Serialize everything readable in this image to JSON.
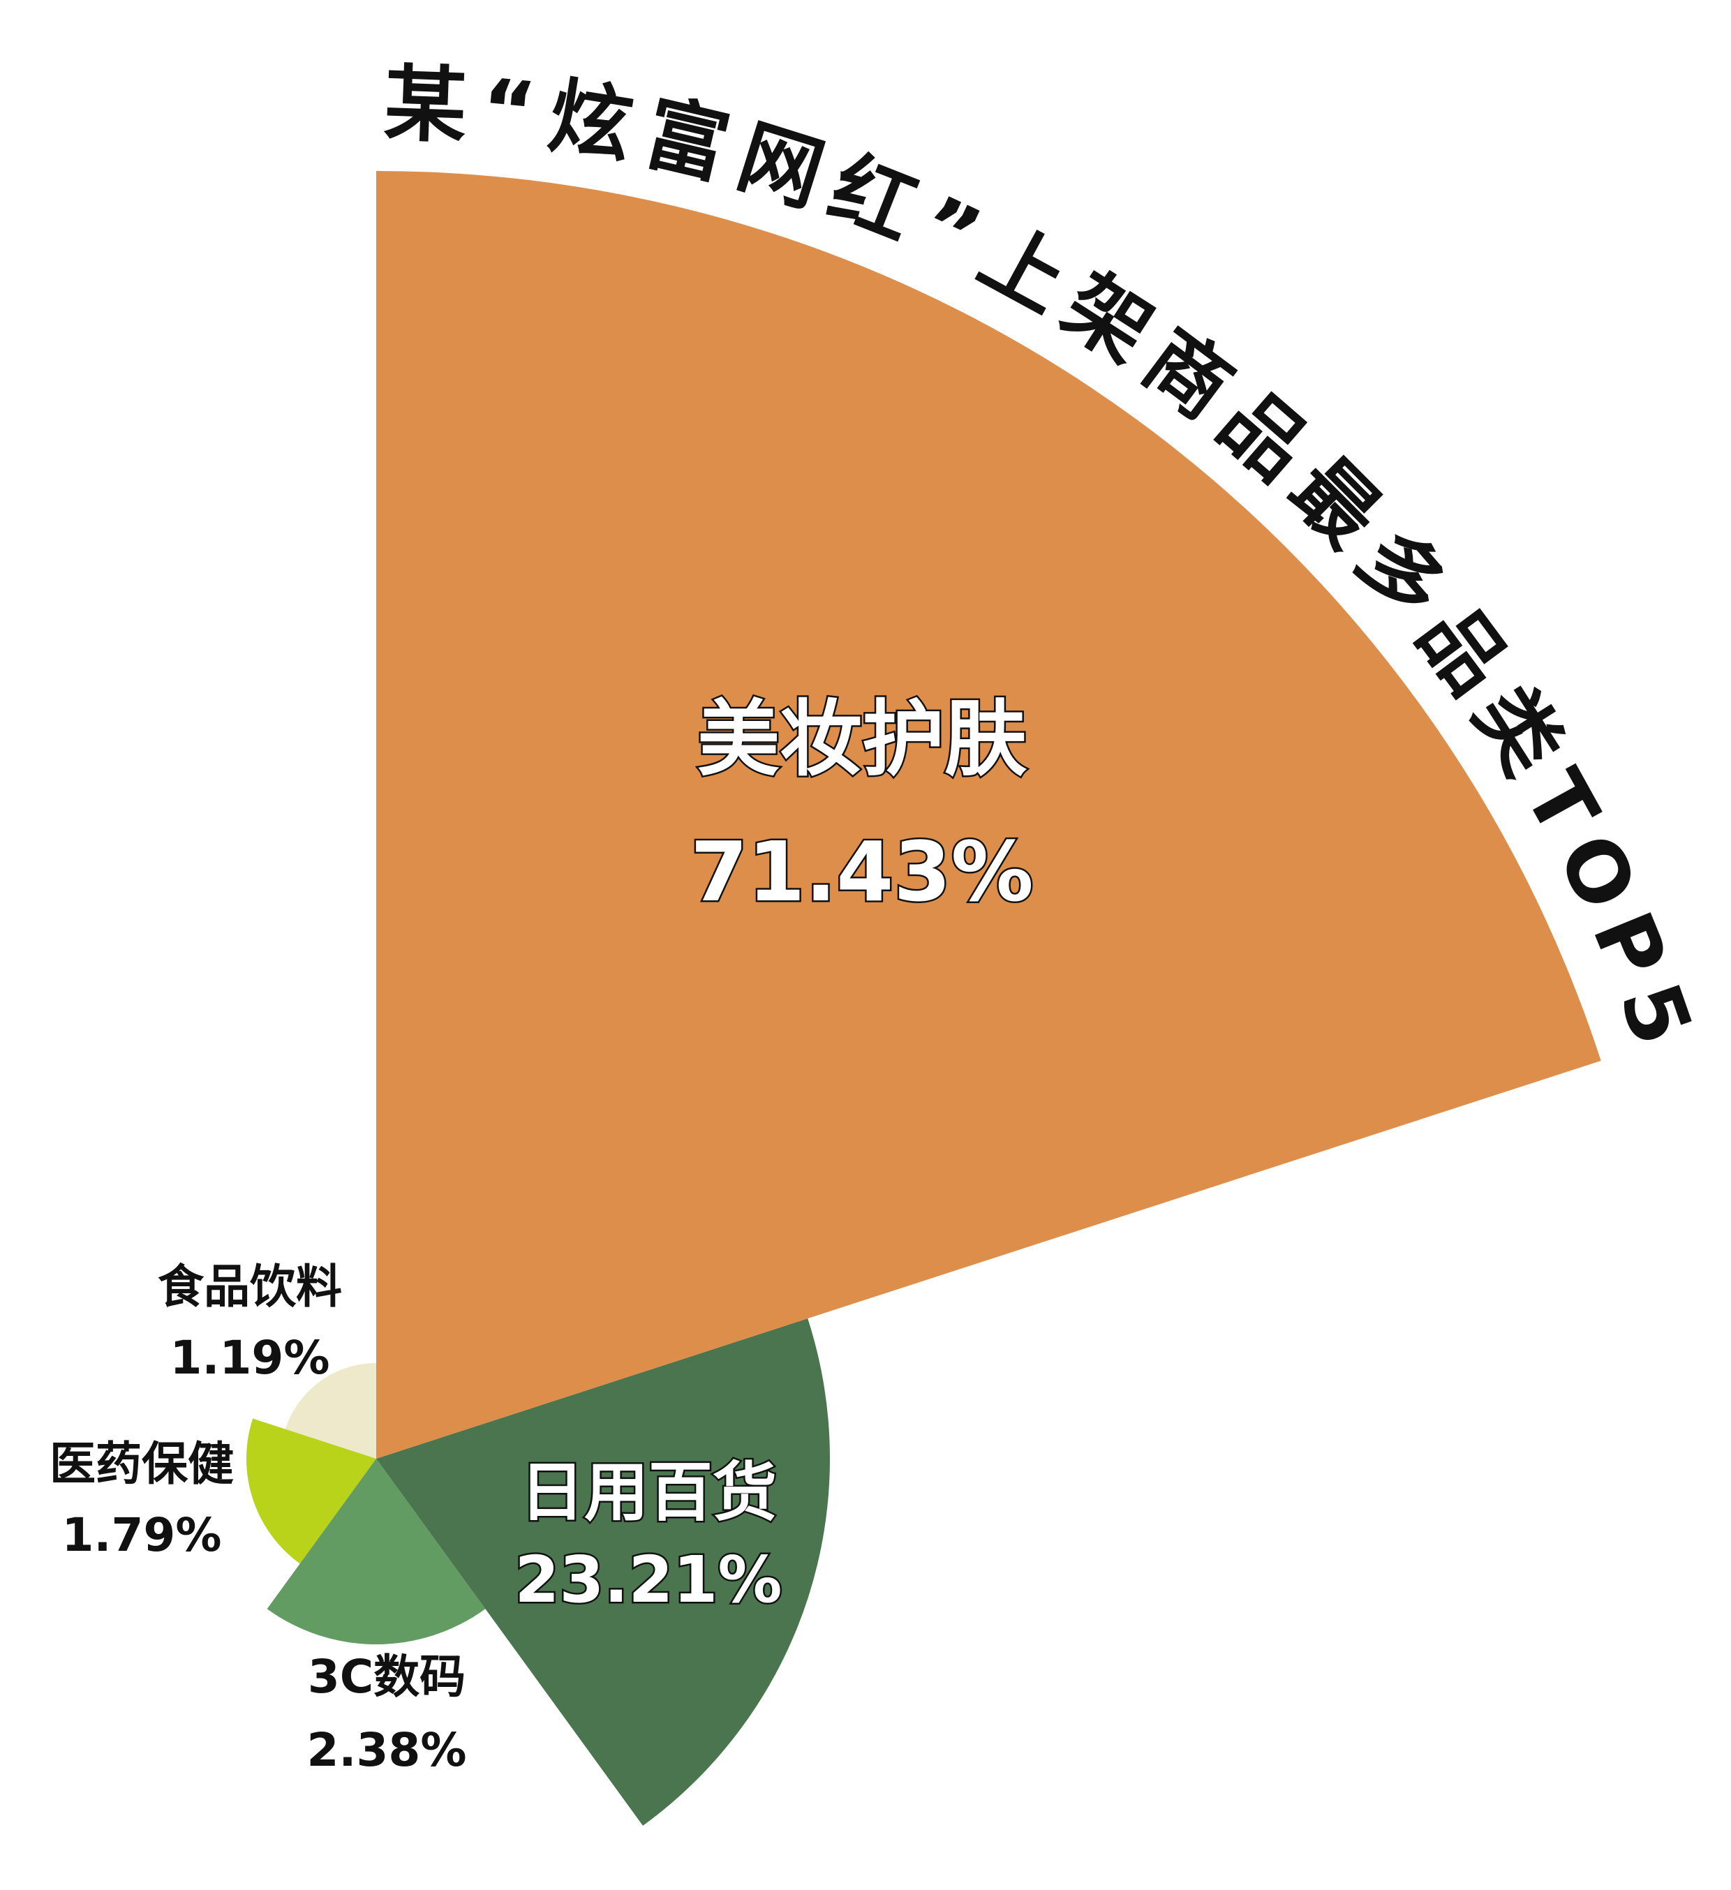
{
  "chart_data": {
    "type": "rose",
    "title": "某“炫富网红”上架商品最多品类TOP5",
    "unit": "%",
    "categories": [
      "美妆护肤",
      "日用百货",
      "3C数码",
      "医药保健",
      "食品饮料"
    ],
    "values": [
      71.43,
      23.21,
      2.38,
      1.79,
      1.19
    ],
    "value_labels": [
      "71.43%",
      "23.21%",
      "2.38%",
      "1.79%",
      "1.19%"
    ],
    "colors": [
      "#DE8E4B",
      "#4B754E",
      "#629C62",
      "#B8D31A",
      "#EFE9CB"
    ],
    "start_direction": "north",
    "direction": "clockwise",
    "legend": "none"
  }
}
